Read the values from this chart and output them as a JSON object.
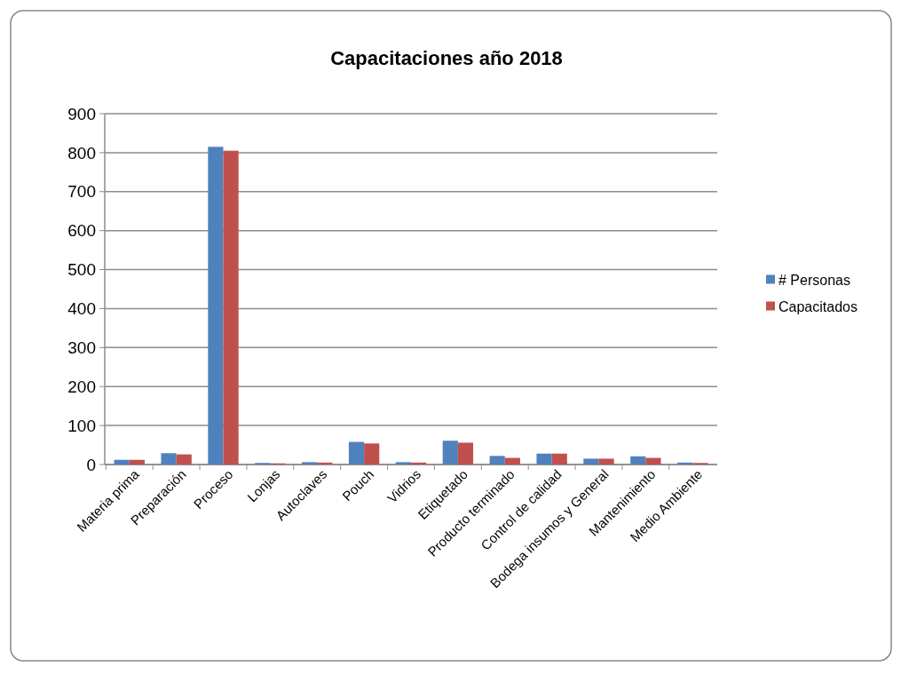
{
  "chart_data": {
    "type": "bar",
    "title": "Capacitaciones año 2018",
    "categories": [
      "Materia prima",
      "Preparación",
      "Proceso",
      "Lonjas",
      "Autoclaves",
      "Pouch",
      "Vidrios",
      "Etiquetado",
      "Producto terminado",
      "Control de calidad",
      "Bodega insumos y General",
      "Mantenimiento",
      "Medio Ambiente"
    ],
    "series": [
      {
        "name": "# Personas",
        "color": "#4f81bd",
        "values": [
          12,
          29,
          815,
          4,
          6,
          58,
          6,
          61,
          22,
          28,
          15,
          21,
          5
        ]
      },
      {
        "name": "Capacitados",
        "color": "#c0504d",
        "values": [
          12,
          26,
          805,
          3,
          5,
          54,
          5,
          56,
          17,
          28,
          15,
          17,
          4
        ]
      }
    ],
    "ylim": [
      0,
      900
    ],
    "yticks": [
      0,
      100,
      200,
      300,
      400,
      500,
      600,
      700,
      800,
      900
    ],
    "grid": "y",
    "legend": "right"
  }
}
